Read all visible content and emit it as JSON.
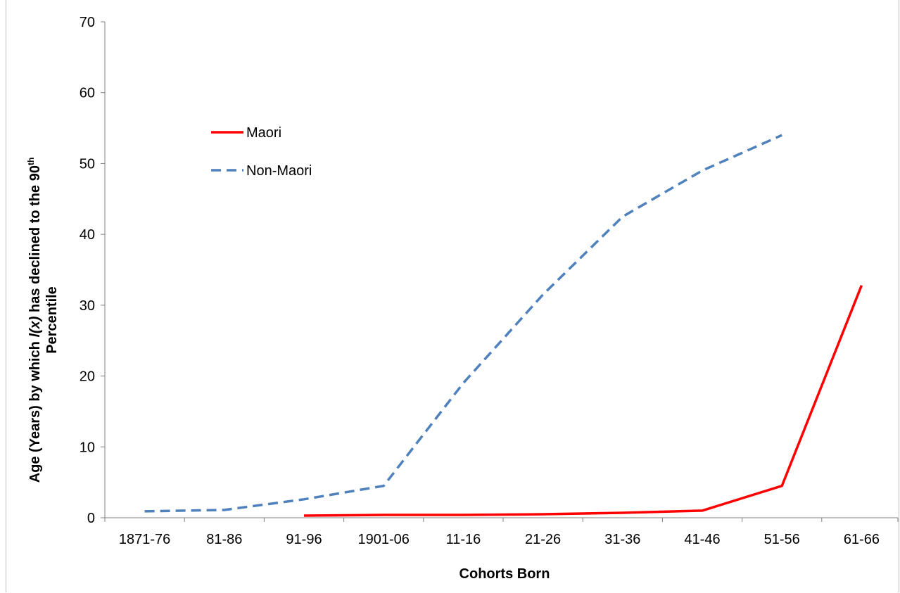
{
  "chart_data": {
    "type": "line",
    "title": "",
    "xlabel": "Cohorts Born",
    "ylabel": {
      "line1_prefix": "Age (Years) by which ",
      "line1_italic": "l(x)",
      "line1_suffix": " has declined to the 90",
      "line1_sup": "th",
      "line2": "Percentile"
    },
    "categories": [
      "1871-76",
      "81-86",
      "91-96",
      "1901-06",
      "11-16",
      "21-26",
      "31-36",
      "41-46",
      "51-56",
      "61-66"
    ],
    "ylim": [
      0,
      70
    ],
    "yticks": [
      0,
      10,
      20,
      30,
      40,
      50,
      60,
      70
    ],
    "grid": false,
    "legend_position": "upper-left inside plot",
    "series": [
      {
        "name": "Maori",
        "color": "#ff0000",
        "style": "solid",
        "values": [
          null,
          null,
          0.3,
          0.4,
          0.4,
          0.5,
          0.7,
          1.0,
          4.5,
          32.8
        ]
      },
      {
        "name": "Non-Maori",
        "color": "#4f81bd",
        "style": "dashed",
        "values": [
          0.9,
          1.1,
          2.6,
          4.5,
          19.0,
          31.5,
          42.5,
          49.0,
          54.0,
          null
        ]
      }
    ]
  }
}
